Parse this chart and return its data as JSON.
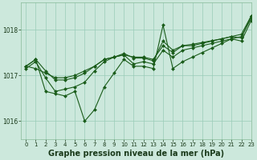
{
  "title": "Graphe pression niveau de la mer (hPa)",
  "bg_color": "#cce8dc",
  "grid_color": "#99ccb8",
  "line_color": "#1a5c1a",
  "text_color": "#1a3a1a",
  "ylim": [
    1015.6,
    1018.6
  ],
  "xlim": [
    -0.5,
    23
  ],
  "yticks": [
    1016,
    1017,
    1018
  ],
  "xticks": [
    0,
    1,
    2,
    3,
    4,
    5,
    6,
    7,
    8,
    9,
    10,
    11,
    12,
    13,
    14,
    15,
    16,
    17,
    18,
    19,
    20,
    21,
    22,
    23
  ],
  "series": [
    [
      1017.15,
      1017.3,
      1016.95,
      1016.65,
      1016.7,
      1016.75,
      1016.85,
      1017.1,
      1017.3,
      1017.4,
      1017.45,
      1017.25,
      1017.3,
      1017.25,
      1017.55,
      1017.4,
      1017.55,
      1017.6,
      1017.65,
      1017.7,
      1017.75,
      1017.8,
      1017.85,
      1018.25
    ],
    [
      1017.2,
      1017.35,
      1017.1,
      1016.9,
      1016.9,
      1016.95,
      1017.05,
      1017.2,
      1017.35,
      1017.4,
      1017.45,
      1017.4,
      1017.4,
      1017.35,
      1017.65,
      1017.5,
      1017.65,
      1017.65,
      1017.7,
      1017.75,
      1017.8,
      1017.85,
      1017.9,
      1018.3
    ],
    [
      1017.2,
      1017.15,
      1017.05,
      1016.95,
      1016.95,
      1017.0,
      1017.1,
      1017.2,
      1017.35,
      1017.4,
      1017.48,
      1017.38,
      1017.38,
      1017.32,
      1017.75,
      1017.55,
      1017.65,
      1017.68,
      1017.72,
      1017.76,
      1017.8,
      1017.85,
      1017.82,
      1018.3
    ],
    [
      1017.2,
      1017.35,
      1016.65,
      1016.6,
      1016.55,
      1016.65,
      1016.0,
      1016.25,
      1016.75,
      1017.05,
      1017.35,
      1017.2,
      1017.2,
      1017.15,
      1018.1,
      1017.15,
      1017.3,
      1017.4,
      1017.5,
      1017.6,
      1017.7,
      1017.8,
      1017.75,
      1018.2
    ]
  ],
  "marker": "D",
  "markersize": 2.0,
  "linewidth": 0.8,
  "title_fontsize": 7,
  "tick_fontsize": 5,
  "spine_color": "#88bb99"
}
